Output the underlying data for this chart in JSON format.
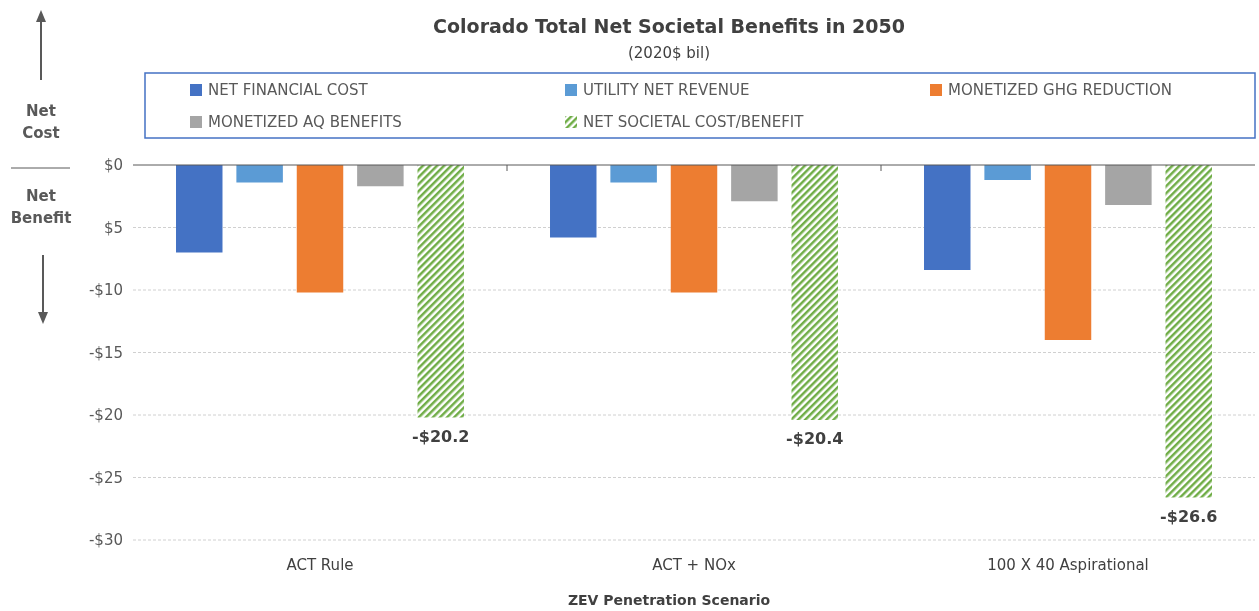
{
  "chart_data": {
    "type": "bar",
    "title": "Colorado Total Net Societal Benefits in 2050",
    "subtitle": "(2020$ bil)",
    "xlabel": "ZEV Penetration Scenario",
    "annotations": [
      "Net Cost",
      "Net Benefit"
    ],
    "categories": [
      "ACT Rule",
      "ACT + NOx",
      "100 X 40 Aspirational"
    ],
    "series": [
      {
        "name": "NET FINANCIAL COST",
        "color": "#4472c4",
        "values": [
          -7.0,
          -5.8,
          -8.4
        ]
      },
      {
        "name": "UTILITY NET REVENUE",
        "color": "#5b9bd5",
        "values": [
          -1.4,
          -1.4,
          -1.2
        ]
      },
      {
        "name": "MONETIZED GHG REDUCTION",
        "color": "#ed7d31",
        "values": [
          -10.2,
          -10.2,
          -14.0
        ]
      },
      {
        "name": "MONETIZED AQ BENEFITS",
        "color": "#a5a5a5",
        "values": [
          -1.7,
          -2.9,
          -3.2
        ]
      },
      {
        "name": "NET SOCIETAL COST/BENEFIT",
        "color": "#70ad47",
        "values": [
          -20.2,
          -20.4,
          -26.6
        ],
        "value_labels": [
          "-$20.2",
          "-$20.4",
          "-$26.6"
        ]
      }
    ],
    "ylim": [
      -30,
      0
    ],
    "yticks": [
      {
        "value": 0,
        "label": "$0"
      },
      {
        "value": -5,
        "label": "$5"
      },
      {
        "value": -10,
        "label": "-$10"
      },
      {
        "value": -15,
        "label": "-$15"
      },
      {
        "value": -20,
        "label": "-$20"
      },
      {
        "value": -25,
        "label": "-$25"
      },
      {
        "value": -30,
        "label": "-$30"
      }
    ],
    "grid": "y",
    "legend": "top"
  }
}
